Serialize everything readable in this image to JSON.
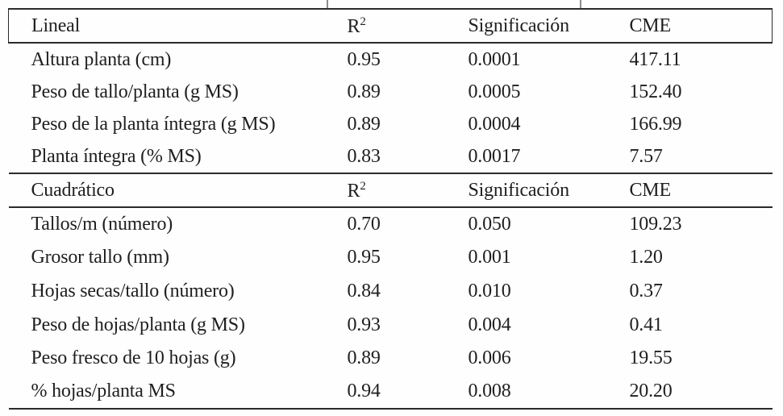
{
  "table": {
    "sections": [
      {
        "title": "Lineal",
        "col_headers": [
          "R²",
          "Significación",
          "CME"
        ],
        "rows": [
          {
            "label": "Altura planta (cm)",
            "r2": "0.95",
            "sig": "0.0001",
            "cme": "417.11"
          },
          {
            "label": "Peso de tallo/planta (g MS)",
            "r2": "0.89",
            "sig": "0.0005",
            "cme": "152.40"
          },
          {
            "label": "Peso de la planta íntegra (g MS)",
            "r2": "0.89",
            "sig": "0.0004",
            "cme": "166.99"
          },
          {
            "label": "Planta íntegra (% MS)",
            "r2": "0.83",
            "sig": "0.0017",
            "cme": "7.57"
          }
        ]
      },
      {
        "title": "Cuadrático",
        "col_headers": [
          "R²",
          "Significación",
          "CME"
        ],
        "rows": [
          {
            "label": "Tallos/m (número)",
            "r2": "0.70",
            "sig": "0.050",
            "cme": "109.23"
          },
          {
            "label": "Grosor tallo (mm)",
            "r2": "0.95",
            "sig": "0.001",
            "cme": "1.20"
          },
          {
            "label": "Hojas secas/tallo (número)",
            "r2": "0.84",
            "sig": "0.010",
            "cme": "0.37"
          },
          {
            "label": "Peso de hojas/planta (g MS)",
            "r2": "0.93",
            "sig": "0.004",
            "cme": "0.41"
          },
          {
            "label": "Peso fresco de 10 hojas (g)",
            "r2": "0.89",
            "sig": "0.006",
            "cme": "19.55"
          },
          {
            "label": "% hojas/planta MS",
            "r2": "0.94",
            "sig": "0.008",
            "cme": "20.20"
          }
        ]
      }
    ]
  }
}
